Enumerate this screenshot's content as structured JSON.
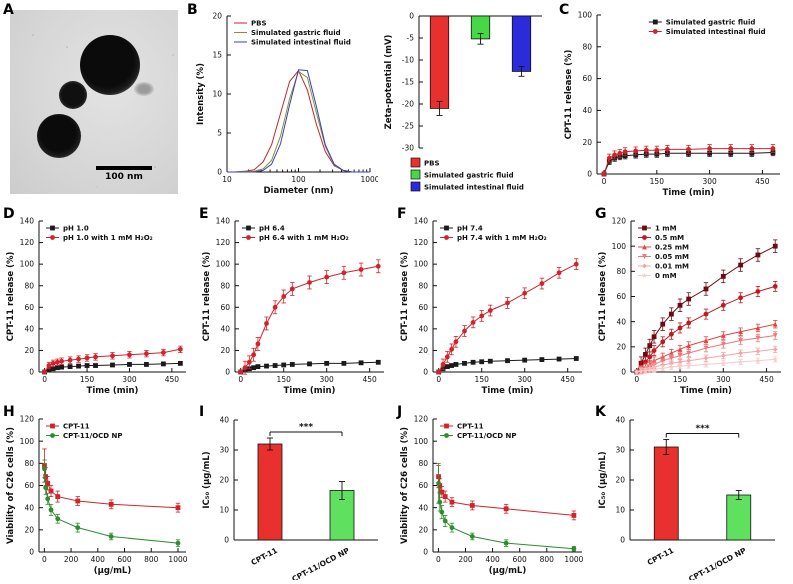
{
  "panels": {
    "A": {
      "label": "A",
      "scale_label": "100 nm"
    },
    "B": {
      "label": "B"
    },
    "C": {
      "label": "C"
    },
    "D": {
      "label": "D"
    },
    "E": {
      "label": "E"
    },
    "F": {
      "label": "F"
    },
    "G": {
      "label": "G"
    },
    "H": {
      "label": "H"
    },
    "I": {
      "label": "I"
    },
    "J": {
      "label": "J"
    },
    "K": {
      "label": "K"
    }
  },
  "colors": {
    "red": "#d2232a",
    "black": "#1a1a1a",
    "olive": "#8f8f2f",
    "blue_line": "#3342c0",
    "bar_red": "#e8312e",
    "bar_green": "#45d945",
    "bar_blue": "#2b2bdb",
    "scatter_green": "#2e8b2e"
  },
  "chart_data": [
    {
      "id": "dls",
      "panel": "B",
      "type": "line",
      "xscale": "log",
      "xlabel": "Diameter (nm)",
      "ylabel": "Intensity (%)",
      "xlim": [
        10,
        1000
      ],
      "ylim": [
        0,
        20
      ],
      "xticks": [
        10,
        100,
        1000
      ],
      "yticks": [
        0,
        5,
        10,
        15,
        20
      ],
      "legend": "tl",
      "x": [
        10,
        13,
        18,
        24,
        32,
        42,
        56,
        75,
        100,
        133,
        178,
        237,
        316,
        422,
        562,
        750,
        1000
      ],
      "series": [
        {
          "name": "PBS",
          "color": "#c1272d",
          "marker": "none",
          "y": [
            0,
            0,
            0.1,
            0.3,
            1.3,
            3.5,
            7.5,
            11.6,
            13,
            10.5,
            6.1,
            2.6,
            0.8,
            0.2,
            0,
            0,
            0
          ]
        },
        {
          "name": "Simulated gastric fluid",
          "color": "#8f8f2f",
          "marker": "none",
          "y": [
            0,
            0,
            0.1,
            0.1,
            0.4,
            1.5,
            4.6,
            9.4,
            12.9,
            12.1,
            7.6,
            3.3,
            0.9,
            0.2,
            0,
            0,
            0
          ]
        },
        {
          "name": "Simulated intestinal fluid",
          "color": "#3342c0",
          "marker": "none",
          "y": [
            0,
            0,
            0,
            0,
            0.2,
            1,
            3.6,
            8.6,
            13.1,
            13,
            8.4,
            3.5,
            1,
            0.2,
            0,
            0,
            0
          ]
        }
      ]
    },
    {
      "id": "zeta",
      "panel": "B",
      "type": "bar",
      "ylabel": "Zeta-potential (mV)",
      "ylim": [
        -30,
        0
      ],
      "yticks": [
        0,
        -5,
        -10,
        -15,
        -20,
        -25,
        -30
      ],
      "categories": [
        "PBS",
        "Simulated gastric fluid",
        "Simulated intestinal fluid"
      ],
      "values": [
        -21,
        -5.2,
        -12.6
      ],
      "errors": [
        1.6,
        1.2,
        1.1
      ],
      "colors": [
        "#e8312e",
        "#45d945",
        "#2b2bdb"
      ],
      "legend": "bottom",
      "rotate_labels": false
    },
    {
      "id": "relfluids",
      "panel": "C",
      "type": "line",
      "xlabel": "Time (min)",
      "ylabel": "CPT-11 release (%)",
      "xlim": [
        -20,
        500
      ],
      "ylim": [
        0,
        100
      ],
      "xticks": [
        0,
        150,
        300,
        450
      ],
      "yticks": [
        0,
        20,
        40,
        60,
        80,
        100
      ],
      "legend": "tr",
      "x": [
        0,
        15,
        30,
        45,
        60,
        90,
        120,
        150,
        180,
        240,
        300,
        360,
        420,
        480
      ],
      "series": [
        {
          "name": "Simulated gastric fluid",
          "color": "#1a1a1a",
          "marker": "square",
          "err": 2,
          "y": [
            0,
            8,
            10,
            11,
            11.5,
            12,
            12.5,
            12.5,
            13,
            13,
            13,
            13,
            13,
            13.5
          ]
        },
        {
          "name": "Simulated intestinal fluid",
          "color": "#d2232a",
          "marker": "circle",
          "err": 2.5,
          "y": [
            0,
            10,
            12,
            13,
            14,
            14.5,
            15,
            15,
            15.5,
            15.5,
            16,
            16,
            16,
            16
          ]
        }
      ]
    },
    {
      "id": "ph1",
      "panel": "D",
      "type": "line",
      "xlabel": "Time (min)",
      "ylabel": "CPT-11 release (%)",
      "xlim": [
        -20,
        500
      ],
      "ylim": [
        0,
        140
      ],
      "xticks": [
        0,
        150,
        300,
        450
      ],
      "yticks": [
        0,
        20,
        40,
        60,
        80,
        100,
        120,
        140
      ],
      "legend": "tl",
      "x": [
        0,
        15,
        30,
        45,
        60,
        90,
        120,
        150,
        180,
        240,
        300,
        360,
        420,
        480
      ],
      "series": [
        {
          "name": "pH 1.0",
          "color": "#1a1a1a",
          "marker": "square",
          "err": 1.5,
          "y": [
            0,
            2,
            3,
            4,
            4.5,
            5,
            5.5,
            6,
            6,
            6.5,
            7,
            7,
            7.5,
            8
          ]
        },
        {
          "name": "pH 1.0 with 1 mM H₂O₂",
          "color": "#d2232a",
          "marker": "circle",
          "err": 3,
          "y": [
            0,
            6,
            8,
            9,
            10,
            11,
            12,
            13,
            14,
            15,
            16,
            17,
            18,
            21
          ]
        }
      ]
    },
    {
      "id": "ph64",
      "panel": "E",
      "type": "line",
      "xlabel": "Time (min)",
      "ylabel": "CPT-11 release (%)",
      "xlim": [
        -20,
        500
      ],
      "ylim": [
        0,
        140
      ],
      "xticks": [
        0,
        150,
        300,
        450
      ],
      "yticks": [
        0,
        20,
        40,
        60,
        80,
        100,
        120,
        140
      ],
      "legend": "tl",
      "x": [
        0,
        15,
        30,
        45,
        60,
        90,
        120,
        150,
        180,
        240,
        300,
        360,
        420,
        480
      ],
      "series": [
        {
          "name": "pH 6.4",
          "color": "#1a1a1a",
          "marker": "square",
          "err": 1.5,
          "y": [
            0,
            2,
            3,
            4,
            5,
            5.5,
            6,
            6.5,
            7,
            7.5,
            8,
            8,
            8.5,
            9
          ]
        },
        {
          "name": "pH 6.4 with 1 mM H₂O₂",
          "color": "#d2232a",
          "marker": "circle",
          "err": 6,
          "y": [
            0,
            4,
            9,
            16,
            26,
            45,
            60,
            70,
            77,
            83,
            88,
            92,
            95,
            98
          ]
        }
      ]
    },
    {
      "id": "ph74",
      "panel": "F",
      "type": "line",
      "xlabel": "Time (min)",
      "ylabel": "CPT-11 release (%)",
      "xlim": [
        -20,
        500
      ],
      "ylim": [
        0,
        140
      ],
      "xticks": [
        0,
        150,
        300,
        450
      ],
      "yticks": [
        0,
        20,
        40,
        60,
        80,
        100,
        120,
        140
      ],
      "legend": "tl",
      "x": [
        0,
        15,
        30,
        45,
        60,
        90,
        120,
        150,
        180,
        240,
        300,
        360,
        420,
        480
      ],
      "series": [
        {
          "name": "pH 7.4",
          "color": "#1a1a1a",
          "marker": "square",
          "err": 1.5,
          "y": [
            0,
            3,
            5,
            6,
            7,
            8,
            9,
            9.5,
            10,
            10.5,
            11,
            11.5,
            12,
            12.5
          ]
        },
        {
          "name": "pH 7.4 with 1 mM H₂O₂",
          "color": "#d2232a",
          "marker": "circle",
          "err": 5,
          "y": [
            0,
            7,
            14,
            21,
            28,
            38,
            46,
            52,
            57,
            64,
            73,
            82,
            92,
            100
          ]
        }
      ]
    },
    {
      "id": "h2o2conc",
      "panel": "G",
      "type": "line",
      "xlabel": "Time (min)",
      "ylabel": "CPT-11 release (%)",
      "xlim": [
        -20,
        500
      ],
      "ylim": [
        0,
        120
      ],
      "xticks": [
        0,
        150,
        300,
        450
      ],
      "yticks": [
        0,
        20,
        40,
        60,
        80,
        100,
        120
      ],
      "legend": "tl",
      "x": [
        0,
        15,
        30,
        45,
        60,
        90,
        120,
        150,
        180,
        240,
        300,
        360,
        420,
        480
      ],
      "series": [
        {
          "name": "1 mM",
          "color": "#6d0b10",
          "marker": "square",
          "err": 5,
          "y": [
            0,
            7,
            14,
            21,
            28,
            38,
            46,
            53,
            58,
            66,
            76,
            85,
            93,
            100
          ]
        },
        {
          "name": "0.5 mM",
          "color": "#c01a1f",
          "marker": "circle",
          "err": 4,
          "y": [
            0,
            4,
            8,
            12,
            17,
            24,
            30,
            35,
            39,
            46,
            53,
            59,
            64,
            68
          ]
        },
        {
          "name": "0.25 mM",
          "color": "#e34444",
          "marker": "triangle-up",
          "err": 3,
          "y": [
            0,
            2,
            4,
            6,
            9,
            12,
            15,
            18,
            21,
            25,
            29,
            32,
            35,
            38
          ]
        },
        {
          "name": "0.05 mM",
          "color": "#ee7777",
          "marker": "triangle-down",
          "err": 3,
          "y": [
            0,
            1.5,
            3,
            4.5,
            6,
            9,
            11,
            13,
            15,
            19,
            22,
            25,
            27,
            29
          ]
        },
        {
          "name": "0.01 mM",
          "color": "#f4a5a5",
          "marker": "diamond",
          "err": 2.5,
          "y": [
            0,
            1,
            2,
            3,
            4,
            5.5,
            7,
            8,
            9,
            11,
            13,
            15,
            16.5,
            18
          ]
        },
        {
          "name": "0 mM",
          "color": "#f8caca",
          "marker": "star",
          "err": 2,
          "y": [
            0,
            0.5,
            1,
            1.5,
            2,
            3,
            4,
            4.5,
            5,
            6,
            7,
            8,
            9,
            10
          ]
        }
      ]
    },
    {
      "id": "viab1",
      "panel": "H",
      "type": "line",
      "xlabel": "(μg/mL)",
      "ylabel": "Viability of C26 cells (%)",
      "xlim": [
        -40,
        1060
      ],
      "ylim": [
        0,
        120
      ],
      "xticks": [
        0,
        200,
        400,
        600,
        800,
        1000
      ],
      "yticks": [
        0,
        20,
        40,
        60,
        80,
        100,
        120
      ],
      "legend": "tl",
      "x": [
        1,
        10,
        25,
        50,
        100,
        250,
        500,
        1000
      ],
      "series": [
        {
          "name": "CPT-11",
          "color": "#d2232a",
          "marker": "square",
          "err": [
            15,
            8,
            6,
            5,
            5,
            4,
            4,
            4
          ],
          "y": [
            78,
            68,
            62,
            55,
            50,
            46,
            43,
            40
          ]
        },
        {
          "name": "CPT-11/OCD NP",
          "color": "#2e8b2e",
          "marker": "circle",
          "err": [
            8,
            6,
            5,
            5,
            4,
            4,
            3,
            3
          ],
          "y": [
            75,
            58,
            48,
            38,
            30,
            22,
            14,
            8
          ]
        }
      ]
    },
    {
      "id": "ic50a",
      "panel": "I",
      "type": "bar",
      "ylabel": "IC₅₀ (μg/mL)",
      "ylim": [
        0,
        40
      ],
      "yticks": [
        0,
        10,
        20,
        30,
        40
      ],
      "categories": [
        "CPT-11",
        "CPT-11/OCD NP"
      ],
      "values": [
        32,
        16.5
      ],
      "errors": [
        2,
        3
      ],
      "colors": [
        "#e8312e",
        "#5fe05f"
      ],
      "sig": "***",
      "rotate_labels": true
    },
    {
      "id": "viab2",
      "panel": "J",
      "type": "line",
      "xlabel": "(μg/mL)",
      "ylabel": "Viability of C26 cells (%)",
      "xlim": [
        -40,
        1060
      ],
      "ylim": [
        0,
        120
      ],
      "xticks": [
        0,
        200,
        400,
        600,
        800,
        1000
      ],
      "yticks": [
        0,
        20,
        40,
        60,
        80,
        100,
        120
      ],
      "legend": "tl",
      "x": [
        1,
        10,
        25,
        50,
        100,
        250,
        500,
        1000
      ],
      "series": [
        {
          "name": "CPT-11",
          "color": "#d2232a",
          "marker": "square",
          "err": [
            10,
            6,
            5,
            5,
            4,
            4,
            4,
            4
          ],
          "y": [
            68,
            60,
            54,
            50,
            45,
            42,
            39,
            33
          ]
        },
        {
          "name": "CPT-11/OCD NP",
          "color": "#2e8b2e",
          "marker": "circle",
          "err": [
            18,
            8,
            6,
            5,
            4,
            3,
            3,
            2
          ],
          "y": [
            62,
            45,
            36,
            28,
            22,
            14,
            8,
            3
          ]
        }
      ]
    },
    {
      "id": "ic50b",
      "panel": "K",
      "type": "bar",
      "ylabel": "IC₅₀ (μg/mL)",
      "ylim": [
        0,
        40
      ],
      "yticks": [
        0,
        10,
        20,
        30,
        40
      ],
      "categories": [
        "CPT-11",
        "CPT-11/OCD NP"
      ],
      "values": [
        31,
        15
      ],
      "errors": [
        2.5,
        1.5
      ],
      "colors": [
        "#e8312e",
        "#5fe05f"
      ],
      "sig": "***",
      "rotate_labels": true
    }
  ]
}
